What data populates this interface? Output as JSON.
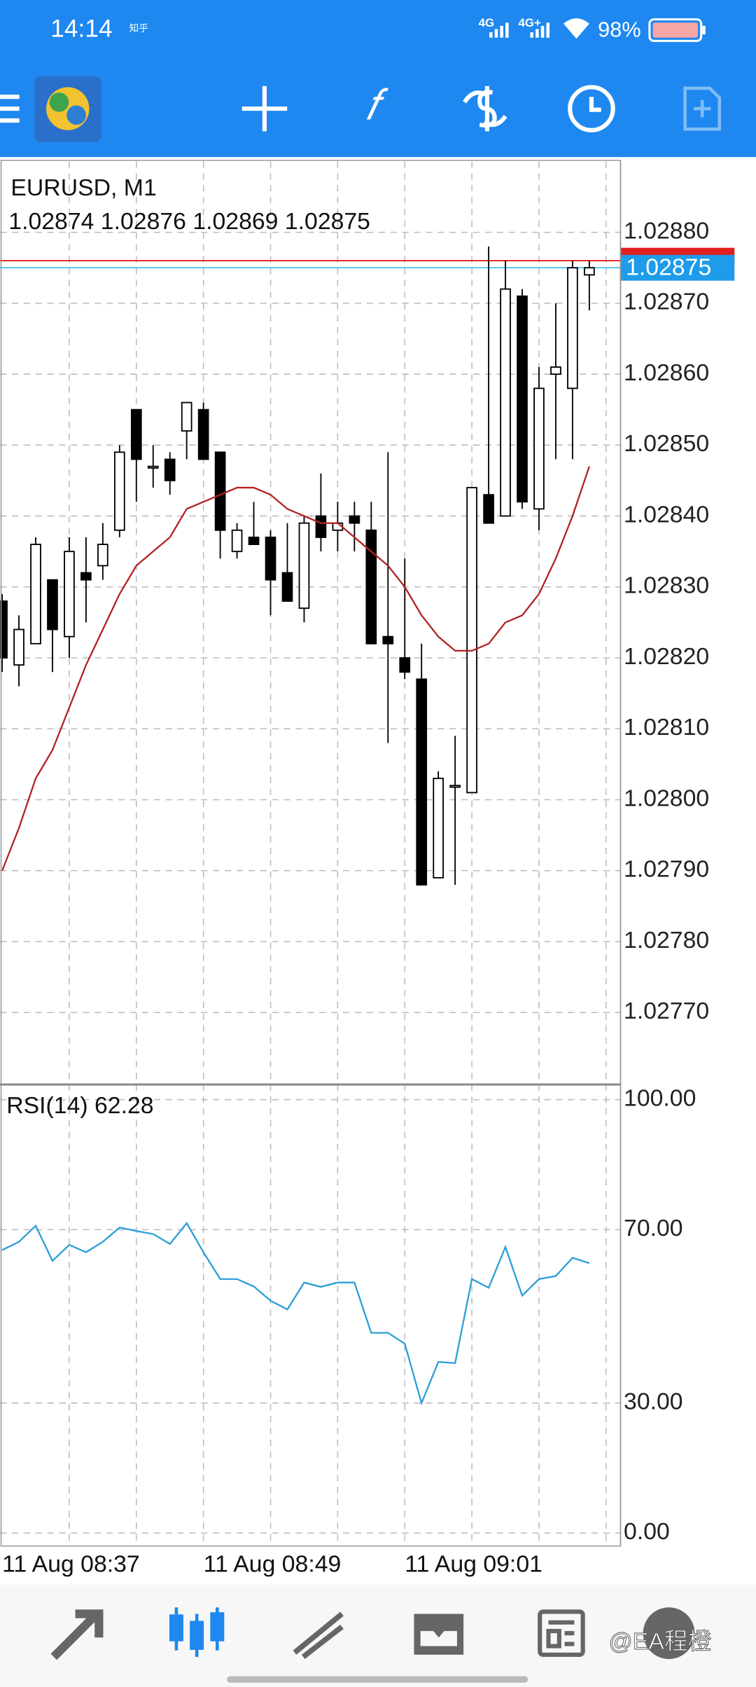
{
  "status_bar": {
    "time": "14:14",
    "app": "知乎",
    "net1": "4G",
    "net2": "4G+",
    "battery": "98%"
  },
  "watermark": "@EA程橙",
  "chart_data": [
    {
      "type": "candlestick",
      "title": "EURUSD, M1",
      "subtitle": "1.02874 1.02876 1.02869 1.02875",
      "categories": [
        "11 Aug 08:37",
        null,
        null,
        null,
        null,
        null,
        null,
        null,
        null,
        null,
        null,
        null,
        "11 Aug 08:49",
        null,
        null,
        null,
        null,
        null,
        null,
        null,
        null,
        null,
        null,
        null,
        "11 Aug 09:01",
        null,
        null,
        null,
        null,
        null,
        null,
        null,
        null,
        null,
        null,
        null
      ],
      "open": [
        1.02828,
        1.02819,
        1.02822,
        1.02831,
        1.02823,
        1.02832,
        1.02833,
        1.02838,
        1.02855,
        1.02847,
        1.02848,
        1.02852,
        1.02855,
        1.02849,
        1.02835,
        1.02837,
        1.02837,
        1.02832,
        1.02827,
        1.0284,
        1.02838,
        1.0284,
        1.02838,
        1.02823,
        1.0282,
        1.02817,
        1.02789,
        1.02802,
        1.02801,
        1.02843,
        1.0284,
        1.02871,
        1.02841,
        1.0286,
        1.02858,
        1.02874
      ],
      "high": [
        1.02829,
        1.02826,
        1.02837,
        1.02831,
        1.02837,
        1.02837,
        1.02839,
        1.0285,
        1.02855,
        1.0285,
        1.02849,
        1.02856,
        1.02856,
        1.02849,
        1.02839,
        1.02842,
        1.02838,
        1.02839,
        1.0284,
        1.02846,
        1.02842,
        1.02842,
        1.02842,
        1.02849,
        1.02834,
        1.02822,
        1.02804,
        1.02809,
        1.02844,
        1.02878,
        1.02876,
        1.02872,
        1.02861,
        1.0287,
        1.02876,
        1.02876
      ],
      "low": [
        1.02818,
        1.02816,
        1.02822,
        1.02818,
        1.0282,
        1.02825,
        1.02831,
        1.02837,
        1.02842,
        1.02844,
        1.02843,
        1.02848,
        1.02848,
        1.02834,
        1.02834,
        1.02836,
        1.02826,
        1.02828,
        1.02825,
        1.02835,
        1.02835,
        1.02835,
        1.02822,
        1.02808,
        1.02817,
        1.02788,
        1.02789,
        1.02788,
        1.02801,
        1.02839,
        1.0284,
        1.02841,
        1.02838,
        1.02848,
        1.02848,
        1.02869
      ],
      "close": [
        1.0282,
        1.02824,
        1.02836,
        1.02824,
        1.02835,
        1.02831,
        1.02836,
        1.02849,
        1.02848,
        1.02847,
        1.02845,
        1.02856,
        1.02848,
        1.02838,
        1.02838,
        1.02836,
        1.02831,
        1.02828,
        1.02839,
        1.02837,
        1.02839,
        1.02839,
        1.02822,
        1.02822,
        1.02818,
        1.02788,
        1.02803,
        1.02802,
        1.02844,
        1.02839,
        1.02872,
        1.02842,
        1.02858,
        1.02861,
        1.02875,
        1.02875
      ],
      "ma": {
        "color": "#b22222",
        "values": [
          1.0279,
          1.02796,
          1.02803,
          1.02807,
          1.02813,
          1.02819,
          1.02824,
          1.02829,
          1.02833,
          1.02835,
          1.02837,
          1.02841,
          1.02842,
          1.02843,
          1.02844,
          1.02844,
          1.02843,
          1.02841,
          1.0284,
          1.02839,
          1.02839,
          1.02837,
          1.02835,
          1.02833,
          1.0283,
          1.02826,
          1.02823,
          1.02821,
          1.02821,
          1.02822,
          1.02825,
          1.02826,
          1.02829,
          1.02834,
          1.0284,
          1.02847
        ]
      },
      "bid": 1.02875,
      "bid_color": "#1e9be9",
      "ask": 1.02876,
      "ask_color": "#e02020",
      "ylim": [
        1.0276,
        1.0289
      ],
      "yticks": [
        {
          "value": 1.0288,
          "label": "1.02880"
        },
        {
          "value": 1.0287,
          "label": "1.02870"
        },
        {
          "value": 1.0286,
          "label": "1.02860"
        },
        {
          "value": 1.0285,
          "label": "1.02850"
        },
        {
          "value": 1.0284,
          "label": "1.02840"
        },
        {
          "value": 1.0283,
          "label": "1.02830"
        },
        {
          "value": 1.0282,
          "label": "1.02820"
        },
        {
          "value": 1.0281,
          "label": "1.02810"
        },
        {
          "value": 1.028,
          "label": "1.02800"
        },
        {
          "value": 1.0279,
          "label": "1.02790"
        },
        {
          "value": 1.0278,
          "label": "1.02780"
        },
        {
          "value": 1.0277,
          "label": "1.02770"
        }
      ],
      "grid": true
    },
    {
      "type": "line",
      "title": "RSI(14) 62.28",
      "color": "#2a9fd6",
      "values": [
        65.3,
        67.2,
        70.9,
        62.8,
        66.5,
        64.8,
        67.2,
        70.5,
        69.7,
        69,
        66.7,
        71.5,
        64.8,
        58.6,
        58.6,
        56.9,
        53.6,
        51.6,
        57.8,
        56.8,
        57.8,
        57.8,
        46.2,
        46.2,
        43.7,
        30,
        39.5,
        39.2,
        58.6,
        56.6,
        66,
        54.8,
        58.6,
        59.3,
        63.5,
        62.28
      ],
      "ylim": [
        -3,
        103.5
      ],
      "yticks": [
        {
          "value": 100,
          "label": "100.00"
        },
        {
          "value": 70,
          "label": "70.00"
        },
        {
          "value": 30,
          "label": "30.00"
        },
        {
          "value": 0,
          "label": "0.00"
        }
      ],
      "grid": true
    }
  ]
}
